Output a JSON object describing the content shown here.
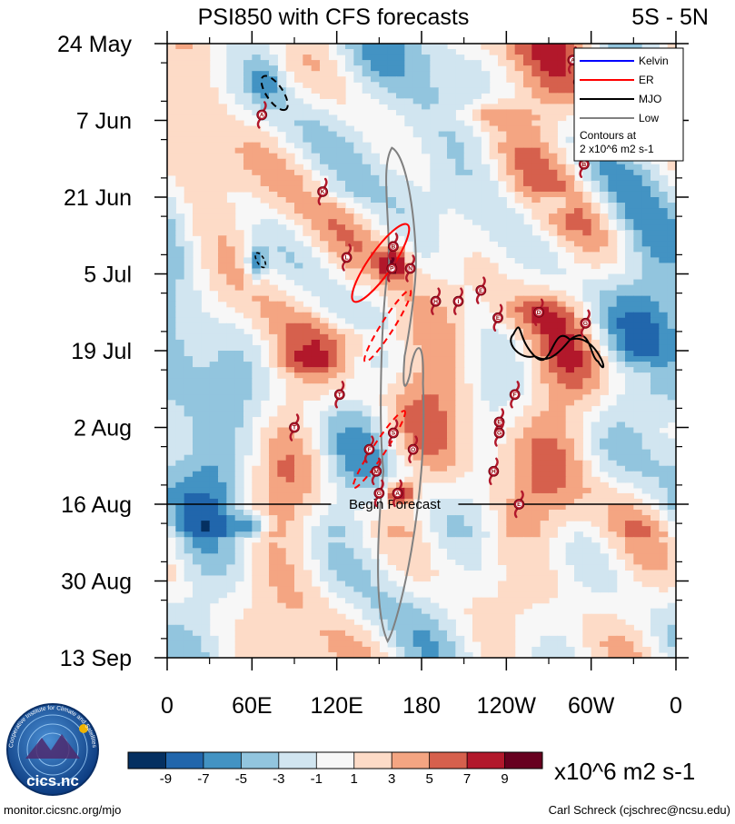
{
  "header": {
    "title": "PSI850 with CFS forecasts",
    "region": "5S - 5N"
  },
  "chart_data": {
    "type": "heatmap",
    "title": "PSI850 with CFS forecasts",
    "region": "5S - 5N",
    "x_axis": {
      "range_deg_east": [
        0,
        360
      ],
      "tick_degrees": [
        0,
        60,
        120,
        180,
        240,
        300,
        360
      ],
      "tick_labels": [
        "0",
        "60E",
        "120E",
        "180",
        "120W",
        "60W",
        "0"
      ]
    },
    "y_axis": {
      "direction": "time increasing downward",
      "range_days": [
        0,
        112
      ],
      "tick_days": [
        0,
        14,
        28,
        42,
        56,
        70,
        84,
        98,
        112
      ],
      "tick_labels": [
        "24 May",
        "7 Jun",
        "21 Jun",
        "5 Jul",
        "19 Jul",
        "2 Aug",
        "16 Aug",
        "30 Aug",
        "13 Sep"
      ]
    },
    "forecast_start": {
      "day": 84,
      "label": "Begin Forecast"
    },
    "legend": {
      "position": "top-right",
      "entries": [
        {
          "name": "Kelvin",
          "color": "#0000ff"
        },
        {
          "name": "ER",
          "color": "#ff0000"
        },
        {
          "name": "MJO",
          "color": "#000000"
        },
        {
          "name": "Low",
          "color": "#808080"
        }
      ],
      "note_line1": "Contours at",
      "note_line2": "2 x10^6 m2 s-1"
    },
    "colorbar": {
      "levels": [
        -9,
        -7,
        -5,
        -3,
        -1,
        1,
        3,
        5,
        7,
        9
      ],
      "level_labels": [
        "-9",
        "-7",
        "-5",
        "-3",
        "-1",
        "1",
        "3",
        "5",
        "7",
        "9"
      ],
      "colors": [
        "#053061",
        "#2166ac",
        "#4393c3",
        "#92c5de",
        "#d1e5f0",
        "#f7f7f7",
        "#fddbc7",
        "#f4a582",
        "#d6604d",
        "#b2182b",
        "#67001f"
      ],
      "units": "x10^6 m2 s-1"
    },
    "contours": [
      {
        "name": "Low",
        "lon": [
          159,
          176,
          168,
          172,
          181,
          156,
          153,
          157,
          159
        ],
        "day": [
          19,
          40,
          57,
          60,
          62,
          109,
          78,
          40,
          19
        ]
      },
      {
        "name": "ER",
        "lon": [
          132,
          170
        ],
        "day": [
          47,
          33
        ]
      },
      {
        "name": "ER",
        "lon": [
          140,
          172
        ],
        "day": [
          58,
          45
        ]
      },
      {
        "name": "ER",
        "lon": [
          132,
          168
        ],
        "day": [
          81,
          67
        ]
      },
      {
        "name": "MJO",
        "lon": [
          245,
          260,
          285,
          300,
          305
        ],
        "day": [
          53,
          57,
          54,
          56,
          58
        ]
      },
      {
        "name": "MJO",
        "lon": [
          68,
          84,
          72
        ],
        "day": [
          6,
          12,
          8
        ]
      }
    ],
    "storms": [
      {
        "letter": "A",
        "lon": 287,
        "day": 3
      },
      {
        "letter": "B",
        "lon": 291,
        "day": 7
      },
      {
        "letter": "A",
        "lon": 67,
        "day": 13
      },
      {
        "letter": "C",
        "lon": 293,
        "day": 17
      },
      {
        "letter": "B",
        "lon": 295,
        "day": 22
      },
      {
        "letter": "K",
        "lon": 110,
        "day": 27
      },
      {
        "letter": "B",
        "lon": 160,
        "day": 37
      },
      {
        "letter": "L",
        "lon": 127,
        "day": 39
      },
      {
        "letter": "P",
        "lon": 159,
        "day": 41
      },
      {
        "letter": "N",
        "lon": 172,
        "day": 41
      },
      {
        "letter": "E",
        "lon": 222,
        "day": 45
      },
      {
        "letter": "H",
        "lon": 190,
        "day": 47
      },
      {
        "letter": "I",
        "lon": 206,
        "day": 47
      },
      {
        "letter": "D",
        "lon": 263,
        "day": 49
      },
      {
        "letter": "E",
        "lon": 234,
        "day": 50
      },
      {
        "letter": "G",
        "lon": 296,
        "day": 51
      },
      {
        "letter": "T",
        "lon": 122,
        "day": 64
      },
      {
        "letter": "F",
        "lon": 246,
        "day": 64
      },
      {
        "letter": "T",
        "lon": 90,
        "day": 70
      },
      {
        "letter": "E",
        "lon": 235,
        "day": 69
      },
      {
        "letter": "S",
        "lon": 160,
        "day": 71
      },
      {
        "letter": "G",
        "lon": 235,
        "day": 71
      },
      {
        "letter": "F",
        "lon": 143,
        "day": 74
      },
      {
        "letter": "O",
        "lon": 174,
        "day": 74
      },
      {
        "letter": "M",
        "lon": 148,
        "day": 78
      },
      {
        "letter": "H",
        "lon": 231,
        "day": 78
      },
      {
        "letter": "G",
        "lon": 150,
        "day": 82
      },
      {
        "letter": "A",
        "lon": 163,
        "day": 82
      },
      {
        "letter": "E",
        "lon": 249,
        "day": 84
      }
    ]
  },
  "footer": {
    "logo_text": "cics.nc",
    "logo_ring_text": "Cooperative Institute for Climate and Satellites",
    "website": "monitor.cicsnc.org/mjo",
    "author": "Carl Schreck (cjschrec@ncsu.edu)"
  }
}
